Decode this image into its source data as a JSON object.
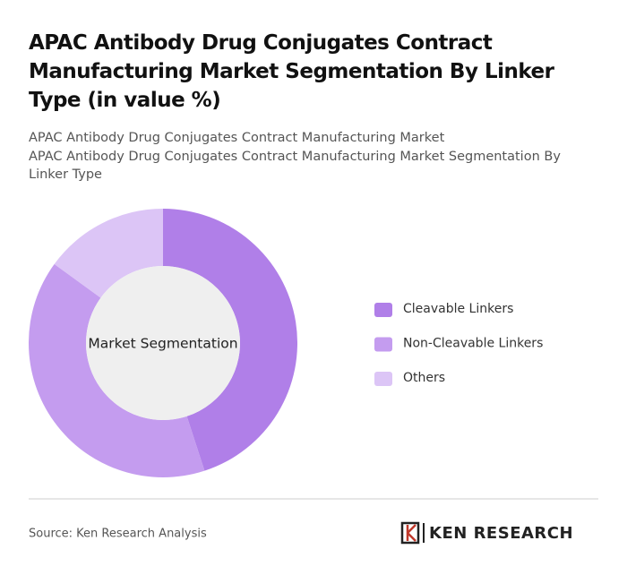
{
  "chart_data": {
    "type": "donut",
    "title": "APAC Antibody Drug Conjugates Contract Manufacturing Market Segmentation By Linker Type (in value %)",
    "subtitles": [
      "APAC Antibody Drug Conjugates Contract Manufacturing Market",
      "APAC Antibody Drug Conjugates Contract Manufacturing Market Segmentation By Linker Type"
    ],
    "center_label": "Market Segmentation",
    "categories": [
      "Cleavable Linkers",
      "Non-Cleavable Linkers",
      "Others"
    ],
    "values": [
      45,
      40,
      15
    ],
    "colors": [
      "#b07fe8",
      "#c49cef",
      "#dcc5f6"
    ],
    "legend": "right"
  },
  "source": "Source: Ken Research Analysis",
  "brand": "KEN RESEARCH"
}
